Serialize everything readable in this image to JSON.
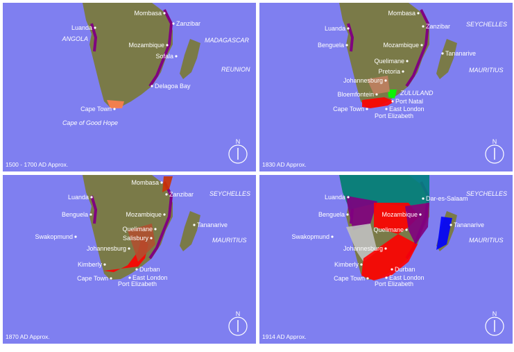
{
  "panels": [
    {
      "caption": "1500 - 1700 AD Approx.",
      "compass": "N",
      "places": [
        "Mombasa",
        "Zanzibar",
        "Luanda",
        "ANGOLA",
        "MADAGASCAR",
        "Mozambique",
        "Sofala",
        "REUNION",
        "Delagoa Bay",
        "Cape Town",
        "Cape of Good Hope"
      ]
    },
    {
      "caption": "1830 AD Approx.",
      "compass": "N",
      "places": [
        "Mombasa",
        "Zanzibar",
        "SEYCHELLES",
        "Luanda",
        "Mozambique",
        "Benguela",
        "Tananarive",
        "Quelimane",
        "MAURITIUS",
        "Pretoria",
        "Johannesburg",
        "ZULULAND",
        "Bloemfontein",
        "Port Natal",
        "Cape Town",
        "East London",
        "Port Elizabeth"
      ]
    },
    {
      "caption": "1870 AD Approx.",
      "compass": "N",
      "places": [
        "Mombasa",
        "Zanzibar",
        "SEYCHELLES",
        "Luanda",
        "Mozambique",
        "Benguela",
        "Tananarive",
        "Quelimane",
        "Salisbury",
        "Swakopmund",
        "MAURITIUS",
        "Johannesburg",
        "Kimberly",
        "Durban",
        "East London",
        "Cape Town",
        "Port Elizabeth"
      ]
    },
    {
      "caption": "1914 AD Approx.",
      "compass": "N",
      "places": [
        "Dar-es-Salaam",
        "SEYCHELLES",
        "Luanda",
        "Mozambique",
        "Benguela",
        "Tananarive",
        "Quelimane",
        "Swakopmund",
        "MAURITIUS",
        "Johannesburg",
        "Kimberly",
        "Durban",
        "East London",
        "Cape Town",
        "Port Elizabeth"
      ]
    }
  ]
}
